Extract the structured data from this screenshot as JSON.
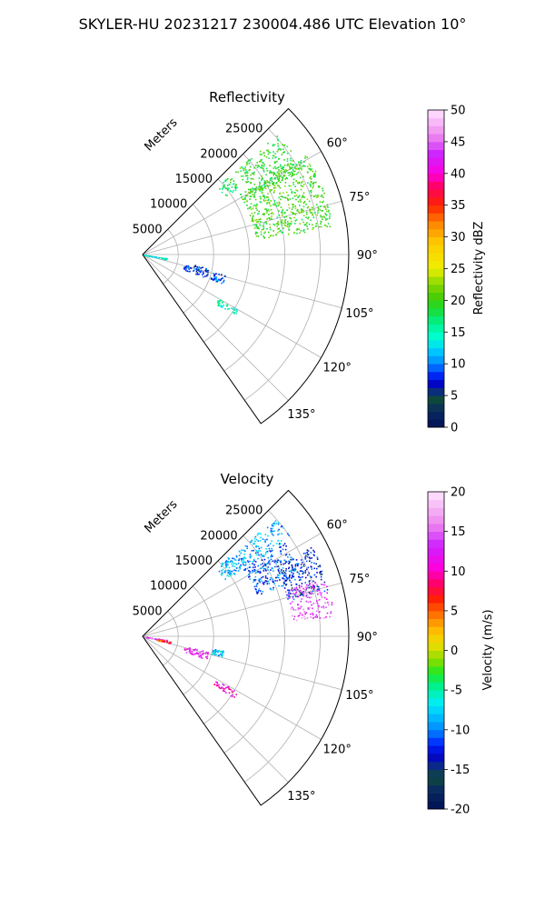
{
  "suptitle": "SKYLER-HU  20231217  230004.486 UTC Elevation 10°",
  "chart_data": [
    {
      "type": "polar-ppi",
      "title": "Reflectivity",
      "radial_axis_label": "Meters",
      "radial_ticks": [
        5000,
        10000,
        15000,
        20000,
        25000
      ],
      "radial_tick_labels": [
        "5000",
        "10000",
        "15000",
        "20000",
        "25000"
      ],
      "rmax": 29000,
      "azimuth_range_deg": [
        45,
        145
      ],
      "azimuth_ticks": [
        60,
        75,
        90,
        105,
        120,
        135
      ],
      "azimuth_tick_labels": [
        "60°",
        "75°",
        "90°",
        "105°",
        "120°",
        "135°"
      ],
      "grid": true,
      "colorbar": {
        "label": "Reflectivity dBZ",
        "min": 0,
        "max": 50,
        "ticks": [
          0,
          5,
          10,
          15,
          20,
          25,
          30,
          35,
          40,
          45,
          50
        ],
        "tick_labels": [
          "0",
          "5",
          "10",
          "15",
          "20",
          "25",
          "30",
          "35",
          "40",
          "45",
          "50"
        ]
      },
      "echo_regions": [
        {
          "az": [
            48,
            62
          ],
          "r": [
            17500,
            25500
          ],
          "value": 19
        },
        {
          "az": [
            58,
            82
          ],
          "r": [
            16000,
            27000
          ],
          "value": 20
        },
        {
          "az": [
            47,
            55
          ],
          "r": [
            14000,
            16500
          ],
          "value": 18
        },
        {
          "az": [
            98,
            101
          ],
          "r": [
            0,
            3500
          ],
          "value": 14
        },
        {
          "az": [
            101,
            110
          ],
          "r": [
            6000,
            9500
          ],
          "value": 8
        },
        {
          "az": [
            104,
            110
          ],
          "r": [
            10000,
            12000
          ],
          "value": 9
        },
        {
          "az": [
            120,
            124
          ],
          "r": [
            12000,
            15500
          ],
          "value": 15
        }
      ]
    },
    {
      "type": "polar-ppi",
      "title": "Velocity",
      "radial_axis_label": "Meters",
      "radial_ticks": [
        5000,
        10000,
        15000,
        20000,
        25000
      ],
      "radial_tick_labels": [
        "5000",
        "10000",
        "15000",
        "20000",
        "25000"
      ],
      "rmax": 29000,
      "azimuth_range_deg": [
        45,
        145
      ],
      "azimuth_ticks": [
        60,
        75,
        90,
        105,
        120,
        135
      ],
      "azimuth_tick_labels": [
        "60°",
        "75°",
        "90°",
        "105°",
        "120°",
        "135°"
      ],
      "grid": true,
      "colorbar": {
        "label": "Velocity (m/s)",
        "min": -20,
        "max": 20,
        "ticks": [
          -20,
          -15,
          -10,
          -5,
          0,
          5,
          10,
          15,
          20
        ],
        "tick_labels": [
          "-20",
          "-15",
          "-10",
          "-5",
          "0",
          "5",
          "10",
          "15",
          "20"
        ]
      },
      "echo_regions": [
        {
          "az": [
            48,
            56
          ],
          "r": [
            15000,
            25000
          ],
          "value": -9
        },
        {
          "az": [
            56,
            70
          ],
          "r": [
            17000,
            24000
          ],
          "value": -11
        },
        {
          "az": [
            62,
            76
          ],
          "r": [
            21000,
            27000
          ],
          "value": -13
        },
        {
          "az": [
            72,
            84
          ],
          "r": [
            21000,
            27000
          ],
          "value": 14
        },
        {
          "az": [
            47,
            55
          ],
          "r": [
            14000,
            16500
          ],
          "value": -8
        },
        {
          "az": [
            98,
            101
          ],
          "r": [
            0,
            3500
          ],
          "value": 14
        },
        {
          "az": [
            100,
            104
          ],
          "r": [
            2000,
            4000
          ],
          "value": 6
        },
        {
          "az": [
            103,
            110
          ],
          "r": [
            6000,
            9500
          ],
          "value": 12
        },
        {
          "az": [
            100,
            104
          ],
          "r": [
            10000,
            11500
          ],
          "value": -8
        },
        {
          "az": [
            120,
            124
          ],
          "r": [
            12000,
            15500
          ],
          "value": 11
        }
      ]
    }
  ]
}
